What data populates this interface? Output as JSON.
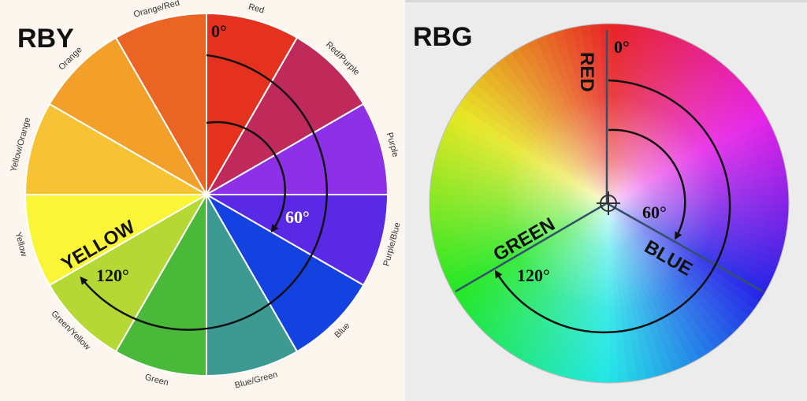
{
  "left_panel": {
    "title": "RBY",
    "background": "#fcf6ef",
    "segments": [
      {
        "label": "Red",
        "color": "#e5321f"
      },
      {
        "label": "Red/Purple",
        "color": "#c02a5a"
      },
      {
        "label": "Purple",
        "color": "#8e30e8"
      },
      {
        "label": "Purple/Blue",
        "color": "#5a29e6"
      },
      {
        "label": "Blue",
        "color": "#1342e0"
      },
      {
        "label": "Blue/Green",
        "color": "#3c9a93"
      },
      {
        "label": "Green",
        "color": "#4ab93a"
      },
      {
        "label": "Green/Yellow",
        "color": "#b6d835"
      },
      {
        "label": "Yellow",
        "color": "#fbf537"
      },
      {
        "label": "Yellow/Orange",
        "color": "#f7c233"
      },
      {
        "label": "Orange",
        "color": "#f3a02b"
      },
      {
        "label": "Orange/Red",
        "color": "#ea6424"
      }
    ],
    "zero_label": "0°",
    "sixty_label": "60°",
    "onetwenty_label": "120°",
    "yellow_label": "YELLOW"
  },
  "right_panel": {
    "title": "RBG",
    "background": "#ececec",
    "zero_label": "0°",
    "sixty_label": "60°",
    "onetwenty_label": "120°",
    "red_label": "RED",
    "green_label": "GREEN",
    "blue_label": "BLUE"
  }
}
